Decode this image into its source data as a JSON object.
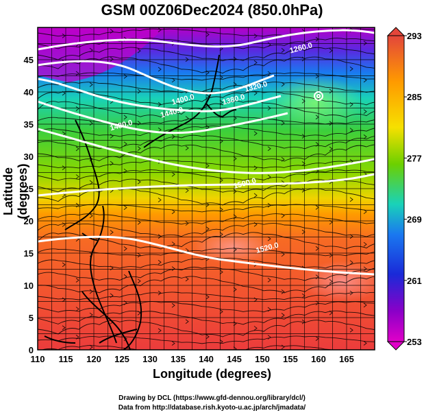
{
  "title": "GSM 00Z06Dec2024 (850.0hPa)",
  "axes": {
    "xlabel": "Longitude (degrees)",
    "ylabel": "Latitude (degrees)",
    "x_ticks": [
      "110",
      "115",
      "120",
      "125",
      "130",
      "135",
      "140",
      "145",
      "150",
      "155",
      "160",
      "165"
    ],
    "y_ticks": [
      "0",
      "5",
      "10",
      "15",
      "20",
      "25",
      "30",
      "35",
      "40",
      "45"
    ]
  },
  "colorbar": {
    "ticks": [
      "293",
      "285",
      "277",
      "269",
      "261",
      "253"
    ],
    "colors": [
      "#e3463b",
      "#ff9a00",
      "#f6e000",
      "#6cd000",
      "#19d2b8",
      "#1a78f0",
      "#1a2ad8",
      "#8a00c8",
      "#e000c8"
    ]
  },
  "contour_labels": [
    "1260.0",
    "1320.0",
    "1380.0",
    "1400.0",
    "1440.0",
    "1480.0",
    "1500.0",
    "1520.0"
  ],
  "credits": {
    "line1": "Drawing by DCL (https://www.gfd-dennou.org/library/dcl/)",
    "line2": "Data from http://database.rish.kyoto-u.ac.jp/arch/jmadata/"
  },
  "chart_data": {
    "type": "heatmap",
    "title": "GSM 00Z06Dec2024 (850.0hPa)",
    "xlabel": "Longitude (degrees)",
    "ylabel": "Latitude (degrees)",
    "xlim": [
      110,
      170
    ],
    "ylim": [
      0,
      50
    ],
    "colorbar_range": [
      253,
      293
    ],
    "colorbar_ticks": [
      253,
      261,
      269,
      277,
      285,
      293
    ],
    "contours": [
      {
        "label": "1260.0",
        "lon": 155,
        "lat": 46
      },
      {
        "label": "1320.0",
        "lon": 147,
        "lat": 40
      },
      {
        "label": "1380.0",
        "lon": 143,
        "lat": 38
      },
      {
        "label": "1400.0",
        "lon": 134,
        "lat": 38
      },
      {
        "label": "1440.0",
        "lon": 132,
        "lat": 36
      },
      {
        "label": "1480.0",
        "lon": 123,
        "lat": 34
      },
      {
        "label": "1500.0",
        "lon": 145,
        "lat": 25
      },
      {
        "label": "1520.0",
        "lon": 149,
        "lat": 15
      }
    ]
  }
}
